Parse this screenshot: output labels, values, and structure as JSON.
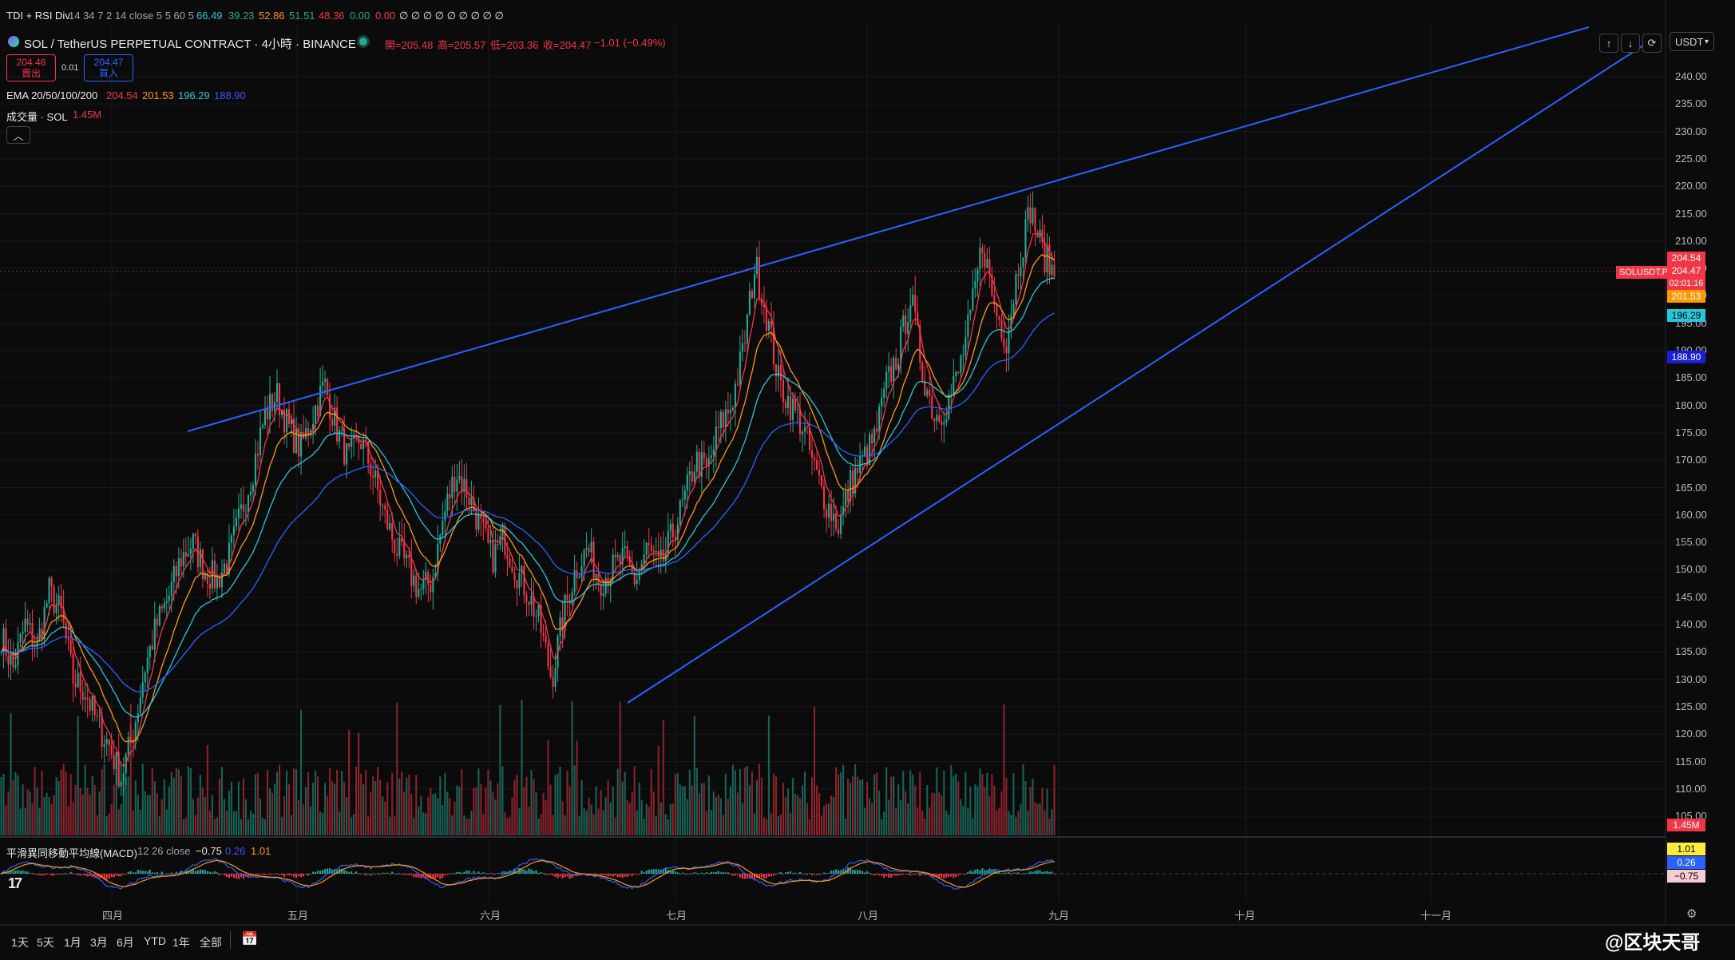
{
  "top_indicator": {
    "name": "TDI + RSI Div",
    "params": "14 34 7 2 14 close 5 5 60 5",
    "values": [
      "66.49",
      "39.23",
      "52.86",
      "51.51",
      "48.36",
      "0.00",
      "0.00"
    ],
    "tail": "∅ ∅ ∅ ∅ ∅ ∅ ∅ ∅ ∅"
  },
  "symbol": {
    "title": "SOL / TetherUS PERPETUAL CONTRACT · 4小時 · BINANCE",
    "open_label": "開=205.48",
    "high_label": "高=205.57",
    "low_label": "低=203.36",
    "close_label": "收=204.47",
    "change": "−1.01 (−0.49%)"
  },
  "order": {
    "sell_price": "204.46",
    "sell_label": "賣出",
    "spread": "0.01",
    "buy_price": "204.47",
    "buy_label": "買入"
  },
  "ema": {
    "label": "EMA 20/50/100/200",
    "values": [
      "204.54",
      "201.53",
      "196.29",
      "188.90"
    ],
    "colors": [
      "#f23645",
      "#ff9800",
      "#26c6da",
      "#2962ff"
    ]
  },
  "volume": {
    "label": "成交量 · SOL",
    "value": "1.45M"
  },
  "macd": {
    "label": "平滑異同移動平均線(MACD)",
    "params": "12 26 close",
    "values": [
      "−0.75",
      "0.26",
      "1.01"
    ]
  },
  "price_axis": {
    "ticks": [
      "240.00",
      "235.00",
      "230.00",
      "225.00",
      "220.00",
      "215.00",
      "210.00",
      "205.00",
      "200.00",
      "195.00",
      "190.00",
      "185.00",
      "180.00",
      "175.00",
      "170.00",
      "165.00",
      "160.00",
      "155.00",
      "150.00",
      "145.00",
      "140.00",
      "135.00",
      "130.00",
      "125.00",
      "120.00",
      "115.00",
      "110.00",
      "105.00"
    ],
    "labels": {
      "ema20": "204.54",
      "close": "204.47",
      "countdown": "02:01:16",
      "ema50": "201.53",
      "ema100": "196.29",
      "ema200": "188.90",
      "volume": "1.45M",
      "symbol_tag": "SOLUSDT.P",
      "macd_1": "1.01",
      "macd_2": "0.26",
      "macd_3": "−0.75"
    },
    "currency": "USDT"
  },
  "time_axis": {
    "months": [
      "四月",
      "五月",
      "六月",
      "七月",
      "八月",
      "九月",
      "十月",
      "十一月"
    ]
  },
  "ranges": [
    "1天",
    "5天",
    "1月",
    "3月",
    "6月",
    "YTD",
    "1年",
    "全部"
  ],
  "watermark": "@区块天哥",
  "colors": {
    "bg": "#0b0b0c",
    "up": "#22ab94",
    "down": "#f23645",
    "trendline": "#2962ff"
  },
  "chart_data": {
    "type": "candlestick",
    "timeframe": "4小時",
    "ylim": [
      105,
      240
    ],
    "approx_closes": [
      138,
      132,
      140,
      136,
      146,
      142,
      130,
      128,
      122,
      118,
      112,
      120,
      132,
      140,
      145,
      152,
      155,
      150,
      148,
      152,
      160,
      168,
      178,
      182,
      176,
      172,
      178,
      184,
      176,
      170,
      174,
      168,
      160,
      154,
      150,
      146,
      148,
      160,
      168,
      164,
      158,
      152,
      156,
      150,
      146,
      140,
      130,
      142,
      150,
      154,
      148,
      150,
      152,
      148,
      154,
      150,
      156,
      162,
      170,
      168,
      176,
      180,
      190,
      206,
      196,
      184,
      180,
      176,
      168,
      162,
      158,
      166,
      170,
      174,
      184,
      190,
      200,
      186,
      178,
      180,
      186,
      196,
      210,
      198,
      192,
      206,
      216,
      208,
      204
    ],
    "trendlines": [
      {
        "name": "upper",
        "from": [
          "~apr-mid",
          175
        ],
        "to": [
          "~sep-late",
          243
        ]
      },
      {
        "name": "lower",
        "from": [
          "~jun-late",
          126
        ],
        "to": [
          "~sep-late",
          242
        ]
      }
    ]
  }
}
